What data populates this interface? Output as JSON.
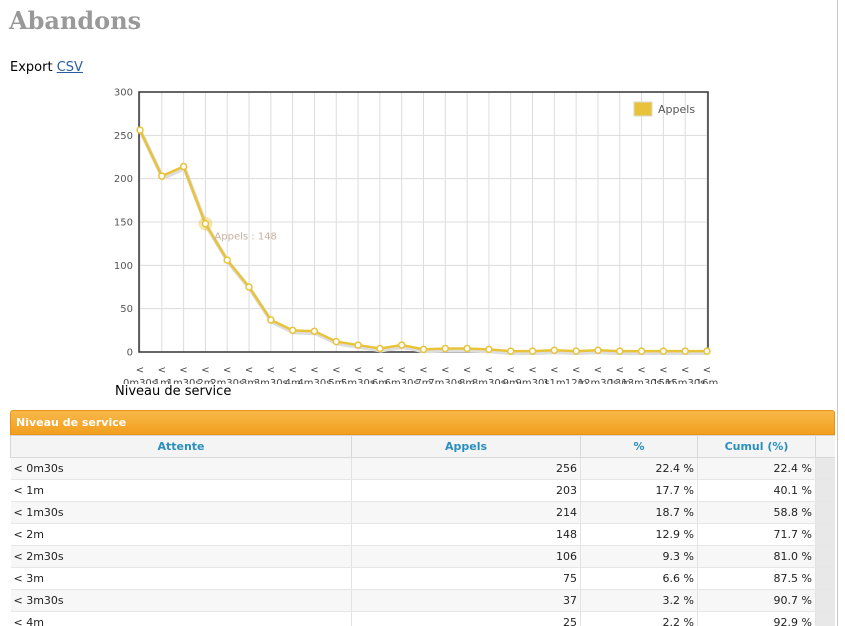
{
  "page": {
    "title": "Abandons",
    "export_label": "Export",
    "export_link": "CSV",
    "chart_caption": "Niveau de service"
  },
  "chart_data": {
    "type": "line",
    "categories": [
      "< 0m30s",
      "< 1m",
      "< 1m30s",
      "< 2m",
      "< 2m30s",
      "< 3m",
      "< 3m30s",
      "< 4m",
      "< 4m30s",
      "< 5m",
      "< 5m30s",
      "< 6m",
      "< 6m30s",
      "< 7m",
      "< 7m30s",
      "< 8m",
      "< 8m30s",
      "< 9m",
      "< 9m30s",
      "< 11m",
      "< 12m",
      "< 12m30s",
      "< 13m",
      "< 13m30s",
      "< 15m",
      "< 15m30s",
      "< 16m"
    ],
    "series": [
      {
        "name": "Appels",
        "values": [
          256,
          203,
          214,
          148,
          106,
          75,
          37,
          25,
          24,
          12,
          8,
          4,
          8,
          3,
          4,
          4,
          3,
          1,
          1,
          2,
          1,
          2,
          1,
          1,
          1,
          1,
          1
        ]
      }
    ],
    "ylim": [
      0,
      300
    ],
    "yticks": [
      0,
      50,
      100,
      150,
      200,
      250,
      300
    ],
    "grid": true,
    "legend_position": "top-right",
    "tooltip": {
      "text": "Appels : 148",
      "index": 3
    },
    "color": "#e8c33a"
  },
  "table": {
    "title": "Niveau de service",
    "columns": [
      "Attente",
      "Appels",
      "%",
      "Cumul (%)"
    ],
    "rows": [
      [
        "< 0m30s",
        "256",
        "22.4 %",
        "22.4 %"
      ],
      [
        "< 1m",
        "203",
        "17.7 %",
        "40.1 %"
      ],
      [
        "< 1m30s",
        "214",
        "18.7 %",
        "58.8 %"
      ],
      [
        "< 2m",
        "148",
        "12.9 %",
        "71.7 %"
      ],
      [
        "< 2m30s",
        "106",
        "9.3 %",
        "81.0 %"
      ],
      [
        "< 3m",
        "75",
        "6.6 %",
        "87.5 %"
      ],
      [
        "< 3m30s",
        "37",
        "3.2 %",
        "90.7 %"
      ],
      [
        "< 4m",
        "25",
        "2.2 %",
        "92.9 %"
      ]
    ]
  }
}
